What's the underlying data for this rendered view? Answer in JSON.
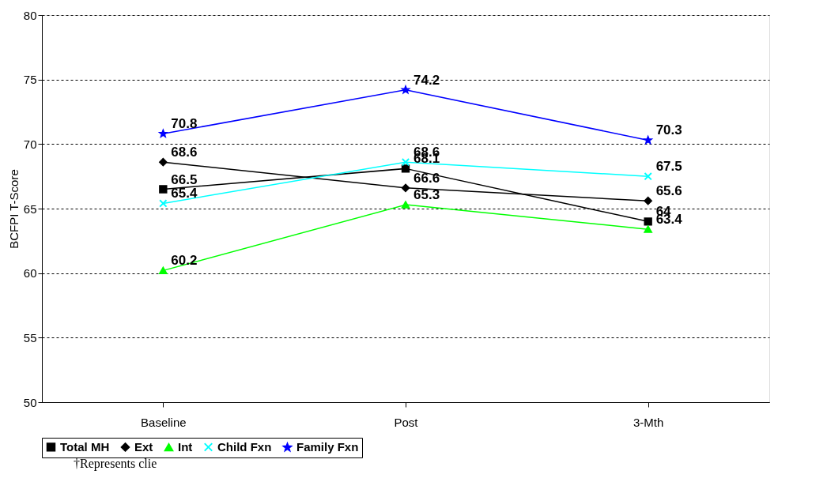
{
  "chart_data": {
    "type": "line",
    "ylabel": "BCFPI T-Score",
    "categories": [
      "Baseline",
      "Post",
      "3-Mth"
    ],
    "series": [
      {
        "name": "Total MH",
        "color": "#000000",
        "marker": "square",
        "values": [
          66.5,
          68.1,
          64
        ]
      },
      {
        "name": "Ext",
        "color": "#000000",
        "marker": "diamond",
        "values": [
          68.6,
          66.6,
          65.6
        ]
      },
      {
        "name": "Int",
        "color": "#00ff00",
        "marker": "triangle",
        "values": [
          60.2,
          65.3,
          63.4
        ]
      },
      {
        "name": "Child Fxn",
        "color": "#00ffff",
        "marker": "cross",
        "values": [
          65.4,
          68.6,
          67.5
        ]
      },
      {
        "name": "Family Fxn",
        "color": "#0000ff",
        "marker": "star",
        "values": [
          70.8,
          74.2,
          70.3
        ]
      }
    ],
    "ylim": [
      50,
      80
    ],
    "yticks": [
      50,
      55,
      60,
      65,
      70,
      75,
      80
    ],
    "grid": "y",
    "legend": "bottom",
    "data_labels": true,
    "annotations": [
      "†Represents clie"
    ]
  }
}
